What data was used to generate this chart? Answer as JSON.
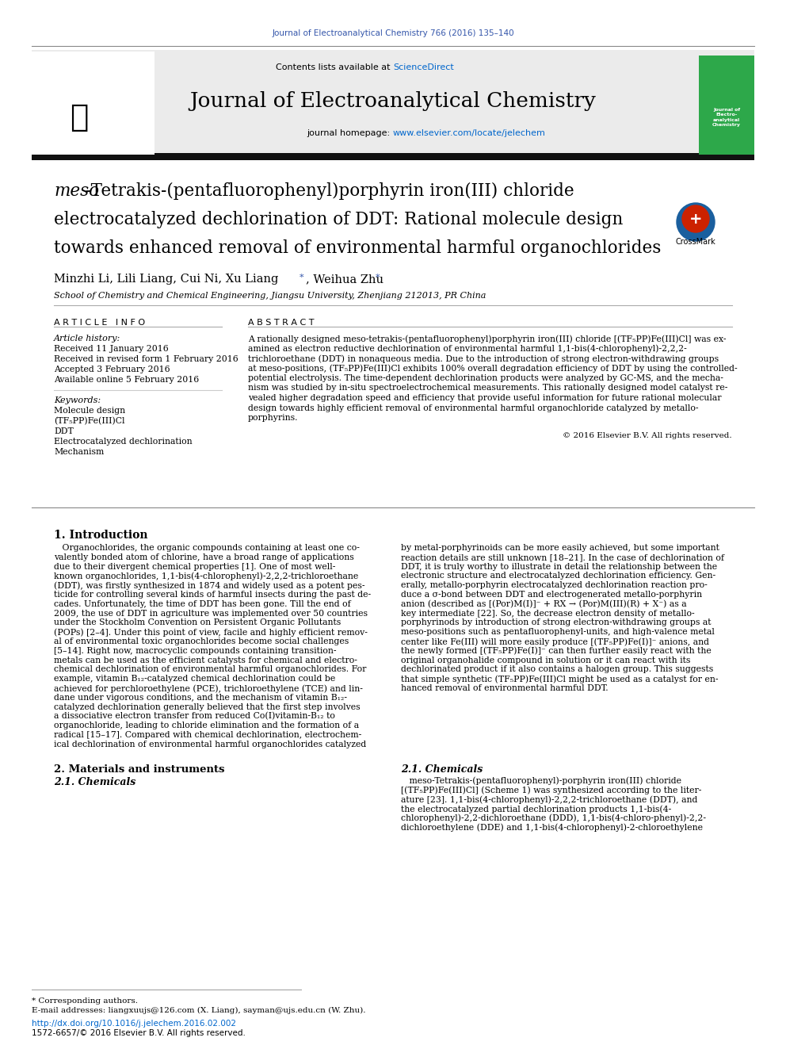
{
  "journal_ref": "Journal of Electroanalytical Chemistry 766 (2016) 135–140",
  "journal_name": "Journal of Electroanalytical Chemistry",
  "contents_line_pre": "Contents lists available at ",
  "contents_line_link": "ScienceDirect",
  "homepage_pre": "journal homepage: ",
  "homepage_link": "www.elsevier.com/locate/jelechem",
  "title_italic": "meso",
  "title_line1_rest": "-Tetrakis-(pentafluorophenyl)porphyrin iron(III) chloride",
  "title_line2": "electrocatalyzed dechlorination of DDT: Rational molecule design",
  "title_line3": "towards enhanced removal of environmental harmful organochlorides",
  "authors_pre": "Minzhi Li, Lili Liang, Cui Ni, Xu Liang ",
  "authors_star1": "*",
  "authors_mid": ", Weihua Zhu ",
  "authors_star2": "*",
  "affiliation": "School of Chemistry and Chemical Engineering, Jiangsu University, Zhenjiang 212013, PR China",
  "article_info_header": "A R T I C L E   I N F O",
  "abstract_header": "A B S T R A C T",
  "article_history_label": "Article history:",
  "received": "Received 11 January 2016",
  "received_revised": "Received in revised form 1 February 2016",
  "accepted": "Accepted 3 February 2016",
  "available": "Available online 5 February 2016",
  "keywords_label": "Keywords:",
  "keywords": [
    "Molecule design",
    "(TF₅PP)Fe(III)Cl",
    "DDT",
    "Electrocatalyzed dechlorination",
    "Mechanism"
  ],
  "abstract_lines": [
    "A rationally designed meso-tetrakis-(pentafluorophenyl)porphyrin iron(III) chloride [(TF₅PP)Fe(III)Cl] was ex-",
    "amined as electron reductive dechlorination of environmental harmful 1,1-bis(4-chlorophenyl)-2,2,2-",
    "trichloroethane (DDT) in nonaqueous media. Due to the introduction of strong electron-withdrawing groups",
    "at meso-positions, (TF₅PP)Fe(III)Cl exhibits 100% overall degradation efficiency of DDT by using the controlled-",
    "potential electrolysis. The time-dependent dechlorination products were analyzed by GC-MS, and the mecha-",
    "nism was studied by in-situ spectroelectrochemical measurements. This rationally designed model catalyst re-",
    "vealed higher degradation speed and efficiency that provide useful information for future rational molecular",
    "design towards highly efficient removal of environmental harmful organochloride catalyzed by metallo-",
    "porphyrins."
  ],
  "copyright": "© 2016 Elsevier B.V. All rights reserved.",
  "intro_header": "1. Introduction",
  "intro_col1_lines": [
    "   Organochlorides, the organic compounds containing at least one co-",
    "valently bonded atom of chlorine, have a broad range of applications",
    "due to their divergent chemical properties [1]. One of most well-",
    "known organochlorides, 1,1-bis(4-chlorophenyl)-2,2,2-trichloroethane",
    "(DDT), was firstly synthesized in 1874 and widely used as a potent pes-",
    "ticide for controlling several kinds of harmful insects during the past de-",
    "cades. Unfortunately, the time of DDT has been gone. Till the end of",
    "2009, the use of DDT in agriculture was implemented over 50 countries",
    "under the Stockholm Convention on Persistent Organic Pollutants",
    "(POPs) [2–4]. Under this point of view, facile and highly efficient remov-",
    "al of environmental toxic organochlorides become social challenges",
    "[5–14]. Right now, macrocyclic compounds containing transition-",
    "metals can be used as the efficient catalysts for chemical and electro-",
    "chemical dechlorination of environmental harmful organochlorides. For",
    "example, vitamin B₁₂-catalyzed chemical dechlorination could be",
    "achieved for perchloroethylene (PCE), trichloroethylene (TCE) and lin-",
    "dane under vigorous conditions, and the mechanism of vitamin B₁₂-",
    "catalyzed dechlorination generally believed that the first step involves",
    "a dissociative electron transfer from reduced Co(I)vitamin-B₁₂ to",
    "organochloride, leading to chloride elimination and the formation of a",
    "radical [15–17]. Compared with chemical dechlorination, electrochem-",
    "ical dechlorination of environmental harmful organochlorides catalyzed"
  ],
  "intro_col2_lines": [
    "by metal-porphyrinoids can be more easily achieved, but some important",
    "reaction details are still unknown [18–21]. In the case of dechlorination of",
    "DDT, it is truly worthy to illustrate in detail the relationship between the",
    "electronic structure and electrocatalyzed dechlorination efficiency. Gen-",
    "erally, metallo-porphyrin electrocatalyzed dechlorination reaction pro-",
    "duce a σ-bond between DDT and electrogenerated metallo-porphyrin",
    "anion (described as [(Por)M(I)]⁻ + RX → (Por)M(III)(R) + X⁻) as a",
    "key intermediate [22]. So, the decrease electron density of metallo-",
    "porphyrinods by introduction of strong electron-withdrawing groups at",
    "meso-positions such as pentafluorophenyl-units, and high-valence metal",
    "center like Fe(III) will more easily produce [(TF₅PP)Fe(I)]⁻ anions, and",
    "the newly formed [(TF₅PP)Fe(I)]⁻ can then further easily react with the",
    "original organohalide compound in solution or it can react with its",
    "dechlorinated product if it also contains a halogen group. This suggests",
    "that simple synthetic (TF₅PP)Fe(III)Cl might be used as a catalyst for en-",
    "hanced removal of environmental harmful DDT."
  ],
  "section2_header": "2. Materials and instruments",
  "section21_header": "2.1. Chemicals",
  "section21_col1_lines": [
    "   meso-Tetrakis-(pentafluorophenyl)-porphyrin iron(III) chloride",
    "[(TF₅PP)Fe(III)Cl] (Scheme 1) was synthesized according to the liter-",
    "ature [23]. 1,1-bis(4-chlorophenyl)-2,2,2-trichloroethane (DDT), and",
    "the electrocatalyzed partial dechlorination products 1,1-bis(4-",
    "chlorophenyl)-2,2-dichloroethane (DDD), 1,1-bis(4-chloro-phenyl)-2,2-",
    "dichloroethylene (DDE) and 1,1-bis(4-chlorophenyl)-2-chloroethylene"
  ],
  "footnote_star": "* Corresponding authors.",
  "footnote_email": "E-mail addresses: liangxuujs@126.com (X. Liang), sayman@ujs.edu.cn (W. Zhu).",
  "doi": "http://dx.doi.org/10.1016/j.jelechem.2016.02.002",
  "issn": "1572-6657/© 2016 Elsevier B.V. All rights reserved.",
  "bg_header_color": "#ebebeb",
  "bg_white": "#ffffff",
  "text_blue": "#3355aa",
  "text_orange": "#FF6600",
  "text_black": "#000000",
  "link_blue": "#0066cc",
  "elsevier_orange": "#FF6600",
  "crossmark_blue": "#1a5f9e",
  "crossmark_red": "#cc2200",
  "journal_cover_green": "#2da84a"
}
